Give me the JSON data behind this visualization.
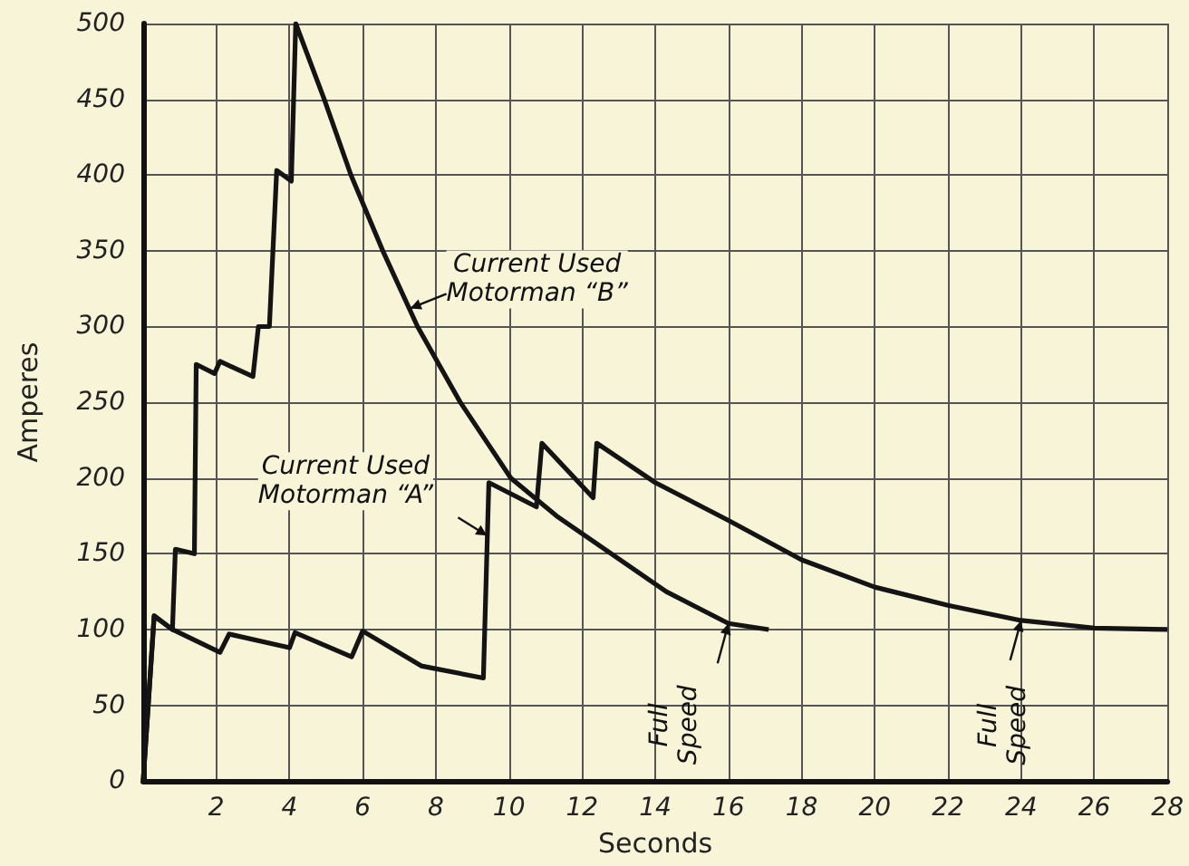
{
  "chart_data": {
    "type": "line",
    "xlabel": "Seconds",
    "ylabel": "Amperes",
    "xlim": [
      0,
      28
    ],
    "xticks": [
      2,
      4,
      6,
      8,
      10,
      12,
      14,
      16,
      18,
      20,
      22,
      24,
      26,
      28
    ],
    "ylim": [
      0,
      500
    ],
    "yticks": [
      0,
      50,
      100,
      150,
      200,
      250,
      300,
      350,
      400,
      450,
      500
    ],
    "grid": true,
    "series": [
      {
        "color": "#141414",
        "x": [
          0,
          0.3,
          0.8,
          0.88,
          1.4,
          1.45,
          1.95,
          2.1,
          3.0,
          3.15,
          3.45,
          3.65,
          4.05,
          4.17,
          4.95,
          5.68,
          6.55,
          7.5,
          8.67,
          10.05,
          11.3,
          12.8,
          14.3,
          16,
          17.1
        ],
        "values": [
          0,
          109,
          100,
          153,
          150,
          275,
          269,
          277,
          267,
          300,
          300,
          403,
          396,
          500,
          450,
          400,
          350,
          300,
          250,
          200,
          175,
          150,
          125,
          104,
          100
        ]
      },
      {
        "color": "#141414",
        "x": [
          0,
          0.3,
          0.8,
          2.1,
          2.35,
          4.0,
          4.15,
          5.7,
          6.0,
          7.6,
          9.3,
          9.45,
          10.75,
          10.9,
          12.3,
          12.4,
          14,
          16,
          18,
          20,
          22,
          24,
          26,
          28
        ],
        "values": [
          0,
          109,
          100,
          85,
          97,
          88,
          98,
          82,
          99,
          76,
          68,
          197,
          181,
          223,
          187,
          223,
          197,
          172,
          146,
          128,
          116,
          106,
          101,
          100
        ]
      }
    ],
    "annotations": [
      {
        "text": "Current Used\nMotorman “B”",
        "x": 7.3,
        "y": 312
      },
      {
        "text": "Current Used\nMotorman “A”",
        "x": 9.4,
        "y": 162
      },
      {
        "text": "Full\nSpeed",
        "x": 16,
        "y": 104
      },
      {
        "text": "Full\nSpeed",
        "x": 24,
        "y": 106
      }
    ]
  }
}
